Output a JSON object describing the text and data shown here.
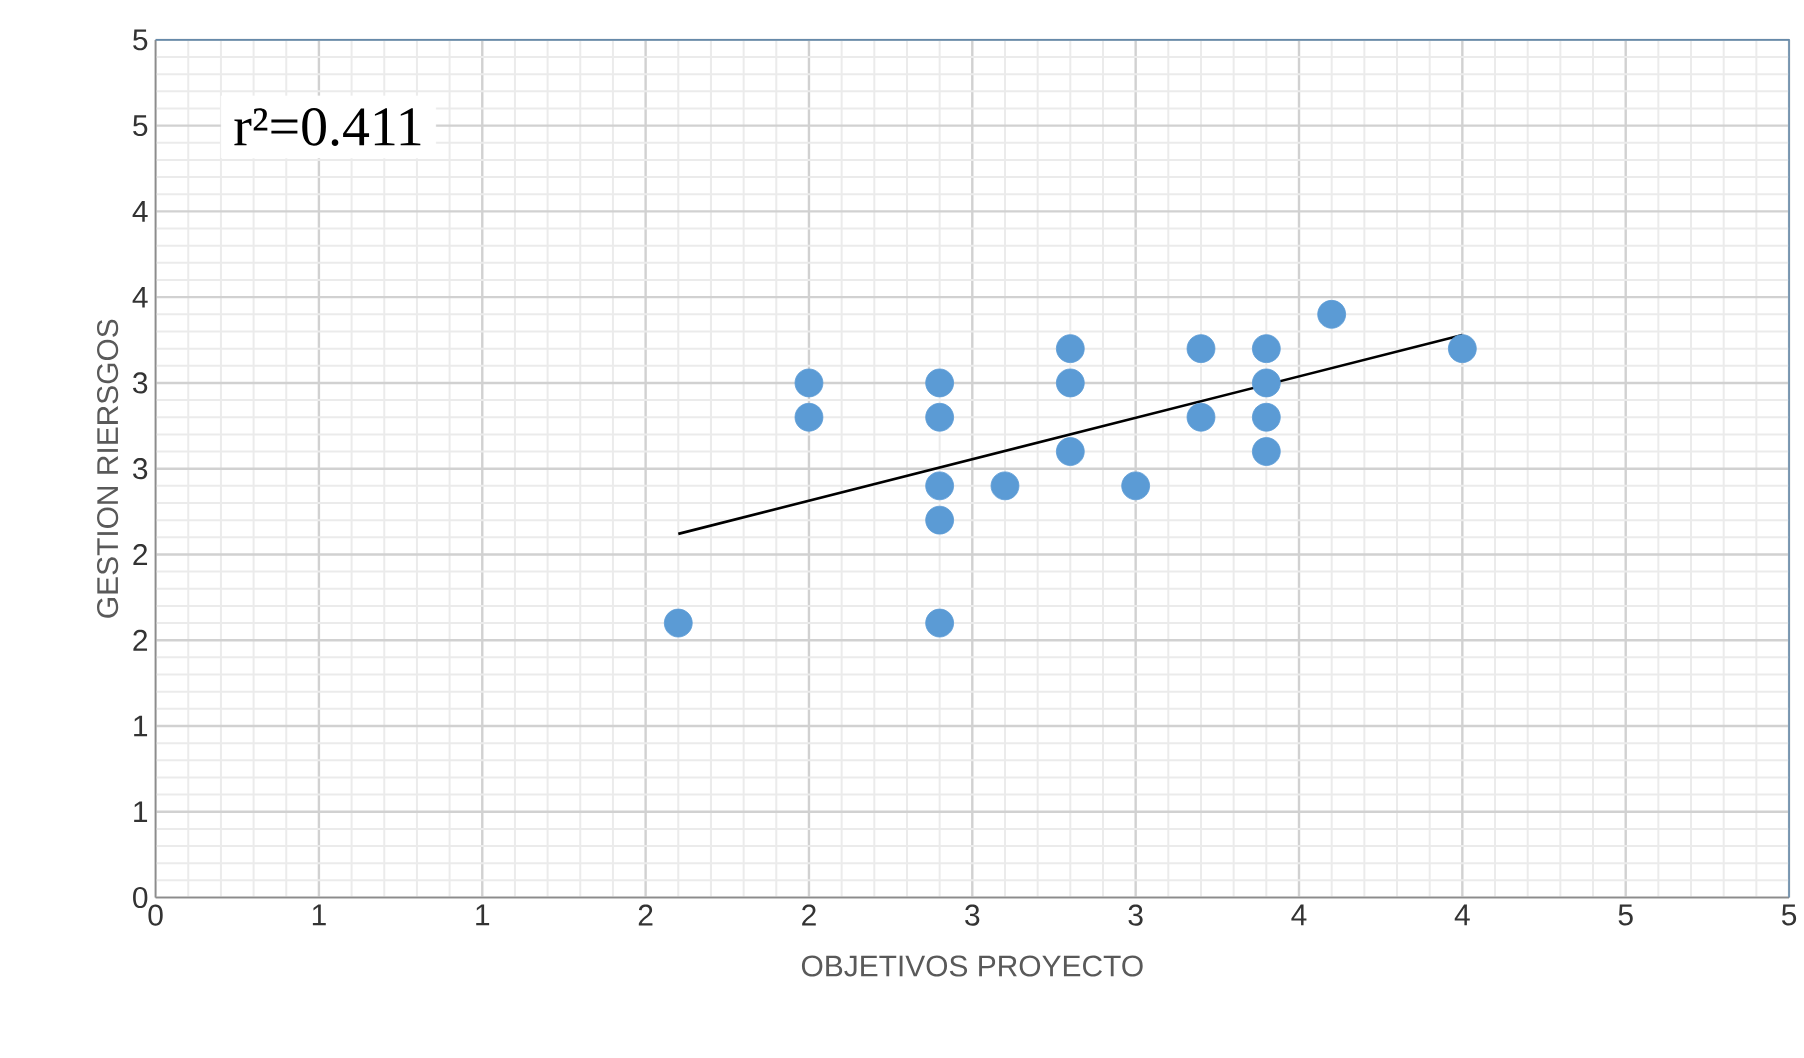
{
  "chart_data": {
    "type": "scatter",
    "xlabel": "OBJETIVOS PROYECTO",
    "ylabel": "GESTION RIERSGOS",
    "annotations": [
      "r²=0.411"
    ],
    "xlim": [
      0,
      5
    ],
    "ylim": [
      0,
      5
    ],
    "xticks": [
      0,
      {
        "value": 0.5,
        "label": "1"
      },
      1,
      {
        "value": 1.5,
        "label": "2"
      },
      2,
      {
        "value": 2.5,
        "label": "3"
      },
      3,
      {
        "value": 3.5,
        "label": "4"
      },
      4,
      {
        "value": 4.5,
        "label": "5"
      },
      5
    ],
    "yticks": [
      0,
      {
        "value": 0.5,
        "label": "1"
      },
      1,
      {
        "value": 1.5,
        "label": "2"
      },
      2,
      {
        "value": 2.5,
        "label": "3"
      },
      3,
      {
        "value": 3.5,
        "label": "4"
      },
      4,
      {
        "value": 4.5,
        "label": "5"
      },
      5
    ],
    "grid": true,
    "marker": "circle",
    "series": [
      {
        "color": "#5b9bd5",
        "x": [
          1.6,
          2.0,
          2.0,
          2.4,
          2.4,
          2.4,
          2.4,
          2.4,
          2.6,
          2.8,
          2.8,
          2.8,
          3.0,
          3.2,
          3.2,
          3.4,
          3.4,
          3.4,
          3.4,
          3.6,
          4.0
        ],
        "values": [
          1.6,
          3.0,
          2.8,
          3.0,
          2.8,
          2.4,
          2.2,
          1.6,
          2.4,
          3.2,
          3.0,
          2.6,
          2.4,
          3.2,
          2.8,
          3.2,
          3.0,
          2.8,
          2.6,
          3.4,
          3.2
        ]
      },
      {
        "type": "line",
        "color": "#000000",
        "marker": "none",
        "x": [
          1.6,
          4.0
        ],
        "values": [
          2.12,
          3.28
        ]
      }
    ]
  }
}
